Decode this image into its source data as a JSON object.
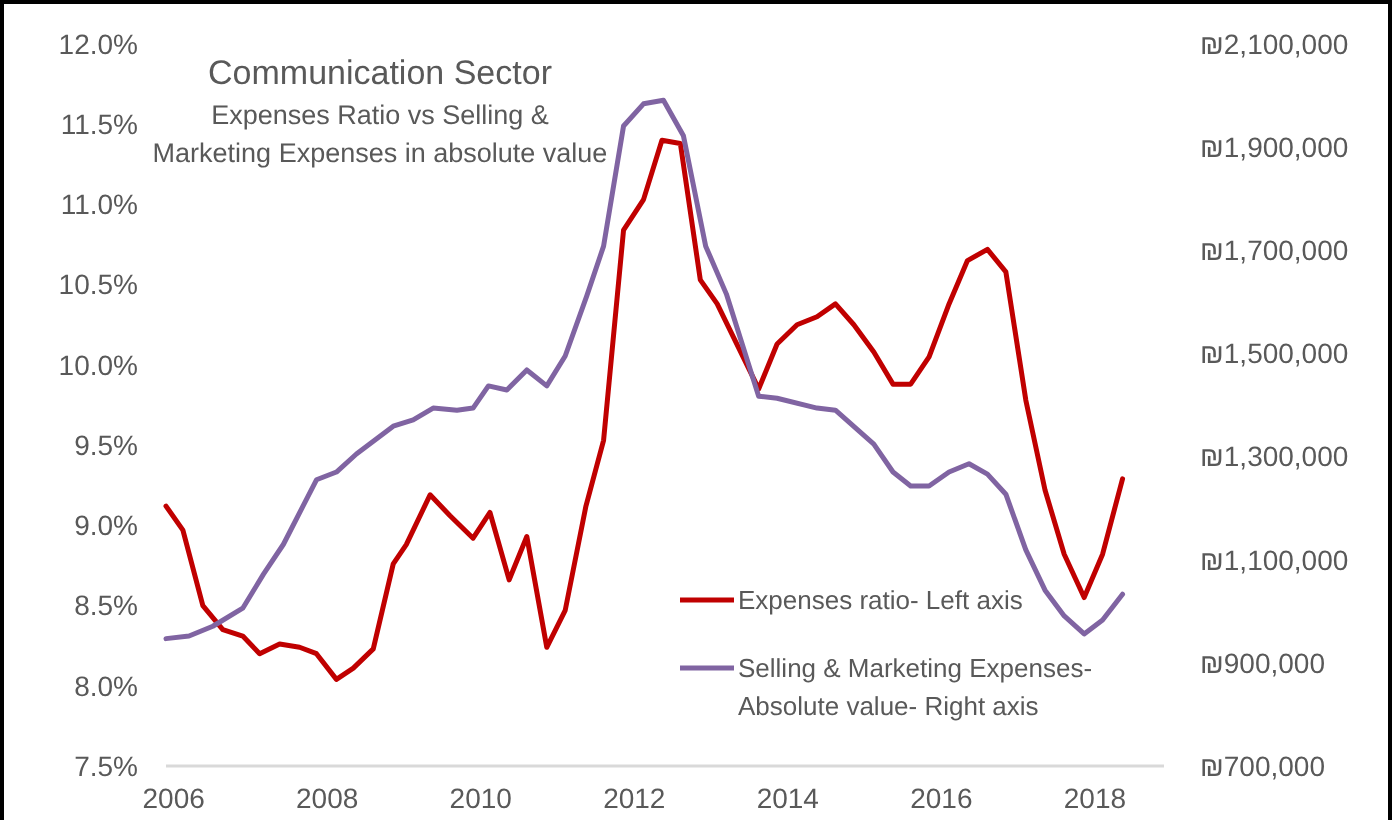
{
  "chart_data": {
    "type": "line",
    "title": "Communication Sector",
    "subtitle": "Expenses Ratio vs Selling & Marketing Expenses in absolute value",
    "xlim": [
      2005.9,
      2018.9
    ],
    "xticks": [
      2006,
      2008,
      2010,
      2012,
      2014,
      2016,
      2018
    ],
    "ylim": [
      7.5,
      12
    ],
    "yticks": [
      {
        "value": 7.5,
        "label": "7.5%"
      },
      {
        "value": 8,
        "label": "8.0%"
      },
      {
        "value": 8.5,
        "label": "8.5%"
      },
      {
        "value": 9,
        "label": "9.0%"
      },
      {
        "value": 9.5,
        "label": "9.5%"
      },
      {
        "value": 10,
        "label": "10.0%"
      },
      {
        "value": 10.5,
        "label": "10.5%"
      },
      {
        "value": 11,
        "label": "11.0%"
      },
      {
        "value": 11.5,
        "label": "11.5%"
      },
      {
        "value": 12,
        "label": "12.0%"
      }
    ],
    "y2lim": [
      700000,
      2100000
    ],
    "y2ticks": [
      {
        "value": 700000,
        "label": "₪700,000"
      },
      {
        "value": 900000,
        "label": "₪900,000"
      },
      {
        "value": 1100000,
        "label": "₪1,100,000"
      },
      {
        "value": 1300000,
        "label": "₪1,300,000"
      },
      {
        "value": 1500000,
        "label": "₪1,500,000"
      },
      {
        "value": 1700000,
        "label": "₪1,700,000"
      },
      {
        "value": 1900000,
        "label": "₪1,900,000"
      },
      {
        "value": 2100000,
        "label": "₪2,100,000"
      }
    ],
    "grid": false,
    "legend": "bottom right",
    "line_style": "solid",
    "series": [
      {
        "name": "Expenses ratio- Left axis",
        "color": "#c00000",
        "x": [
          2005.9,
          2006.12,
          2006.38,
          2006.64,
          2006.9,
          2007.12,
          2007.38,
          2007.64,
          2007.86,
          2008.12,
          2008.34,
          2008.6,
          2008.86,
          2009.03,
          2009.34,
          2009.6,
          2009.9,
          2010.12,
          2010.37,
          2010.6,
          2010.86,
          2011.1,
          2011.37,
          2011.6,
          2011.86,
          2012.12,
          2012.36,
          2012.6,
          2012.86,
          2013.08,
          2013.62,
          2013.86,
          2014.12,
          2014.38,
          2014.62,
          2014.86,
          2015.12,
          2015.37,
          2015.6,
          2015.84,
          2016.1,
          2016.34,
          2016.6,
          2016.84,
          2017.1,
          2017.35,
          2017.6,
          2017.86,
          2018.1,
          2018.36
        ],
        "values": [
          9.12,
          8.97,
          8.5,
          8.35,
          8.31,
          8.2,
          8.26,
          8.24,
          8.2,
          8.04,
          8.11,
          8.23,
          8.76,
          8.88,
          9.19,
          9.06,
          8.92,
          9.08,
          8.66,
          8.93,
          8.24,
          8.47,
          9.12,
          9.53,
          10.84,
          11.03,
          11.4,
          11.38,
          10.53,
          10.38,
          9.85,
          10.13,
          10.25,
          10.3,
          10.38,
          10.25,
          10.08,
          9.88,
          9.88,
          10.05,
          10.38,
          10.65,
          10.72,
          10.58,
          9.78,
          9.22,
          8.82,
          8.55,
          8.82,
          9.29
        ]
      },
      {
        "name": "Selling & Marketing Expenses- Absolute value- Right axis",
        "color": "#8064a2",
        "axis": "y2",
        "x": [
          2005.9,
          2006.2,
          2006.51,
          2006.9,
          2007.17,
          2007.43,
          2007.86,
          2008.12,
          2008.38,
          2008.86,
          2009.12,
          2009.38,
          2009.69,
          2009.9,
          2010.1,
          2010.34,
          2010.6,
          2010.86,
          2011.1,
          2011.38,
          2011.6,
          2011.86,
          2012.12,
          2012.38,
          2012.64,
          2012.93,
          2013.2,
          2013.62,
          2013.86,
          2014.38,
          2014.62,
          2015.12,
          2015.37,
          2015.6,
          2015.84,
          2016.1,
          2016.36,
          2016.6,
          2016.84,
          2017.1,
          2017.35,
          2017.6,
          2017.86,
          2018.1,
          2018.36
        ],
        "values": [
          947000,
          952000,
          971000,
          1006000,
          1072000,
          1130000,
          1255000,
          1270000,
          1305000,
          1359000,
          1371000,
          1394000,
          1390000,
          1394000,
          1437000,
          1429000,
          1468000,
          1437000,
          1495000,
          1611000,
          1708000,
          1941000,
          1984000,
          1991000,
          1922000,
          1708000,
          1615000,
          1417000,
          1413000,
          1394000,
          1390000,
          1324000,
          1270000,
          1243000,
          1243000,
          1270000,
          1286000,
          1266000,
          1227000,
          1119000,
          1041000,
          991000,
          956000,
          983000,
          1033000
        ]
      }
    ]
  }
}
